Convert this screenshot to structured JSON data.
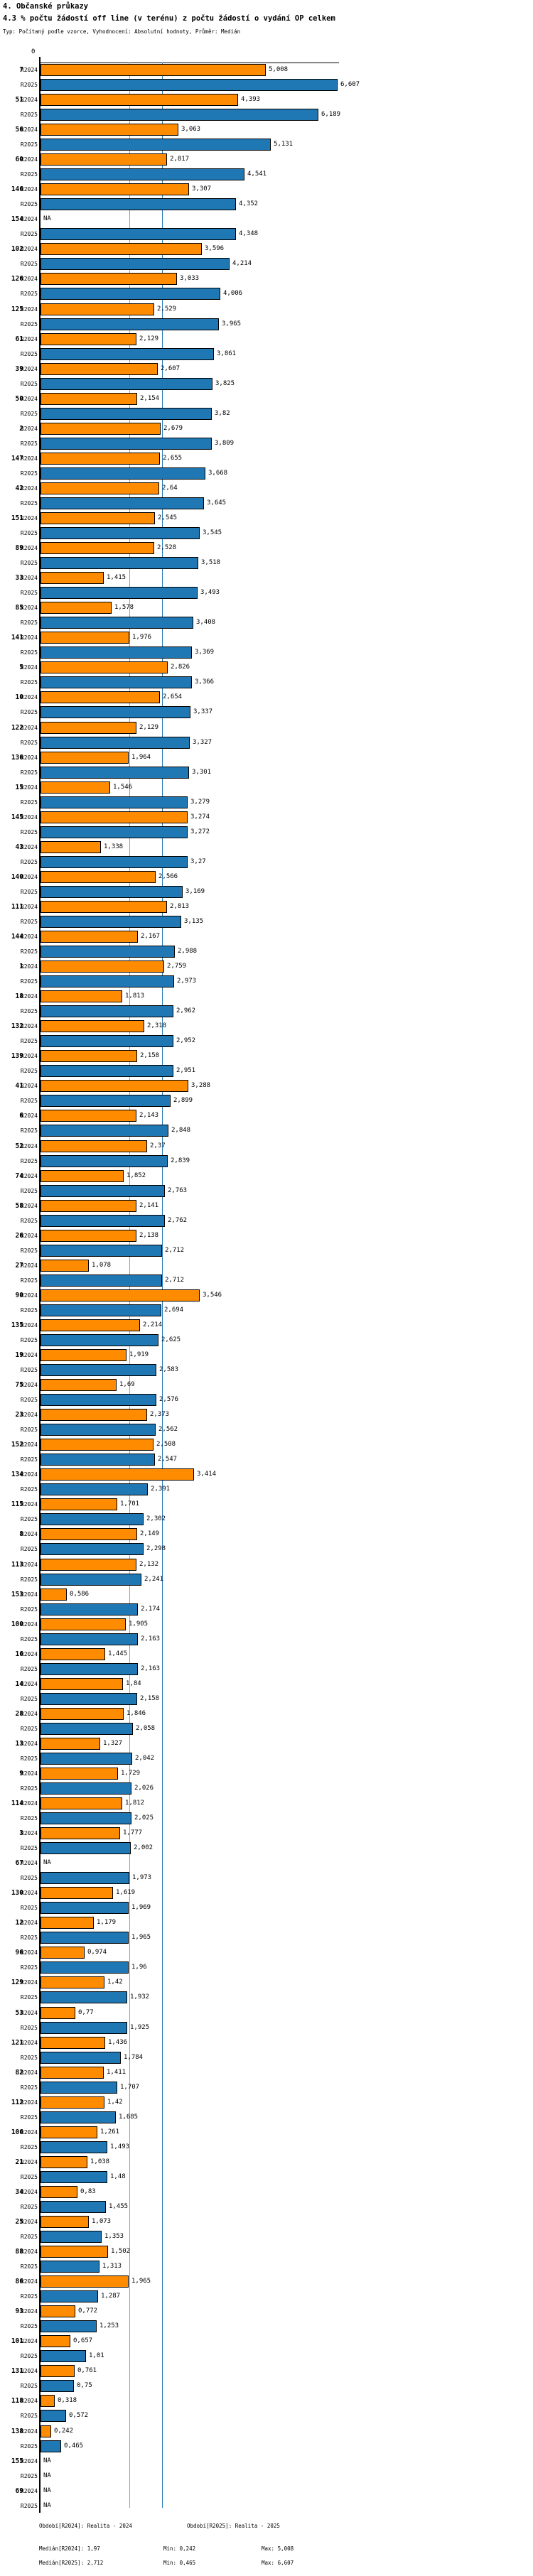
{
  "header": {
    "title": "4. Občanské průkazy",
    "subtitle": "4.3 % počtu žádostí off line (v terénu) z počtu žádostí o vydání OP celkem",
    "meta": "Typ: Počítaný podle vzorce, Vyhodnocení: Absolutní hodnoty, Průměr: Medián"
  },
  "axis": {
    "origin_label": "0"
  },
  "series_labels": {
    "r2024": "R2024",
    "r2025": "R2025"
  },
  "na_label": "NA",
  "colors": {
    "bar_r2024": "#FF8C00",
    "bar_r2025": "#1F77B4",
    "median_line_r2024": "#FF8C00",
    "median_line_r2025": "#1F77B4",
    "bar_border": "#000000"
  },
  "legend": {
    "period_r2024": "Období[R2024]: Realita - 2024",
    "period_r2025": "Období[R2025]: Realita - 2025",
    "median_r2024": "Medián[R2024]: 1,97",
    "min_r2024": "Min: 0,242",
    "max_r2024": "Max: 5,008",
    "median_r2025": "Medián[R2025]: 2,712",
    "min_r2025": "Min: 0,465",
    "max_r2025": "Max: 6,607"
  },
  "chart_data": {
    "type": "bar",
    "orientation": "horizontal",
    "title": "4.3 % počtu žádostí off line (v terénu) z počtu žádostí o vydání OP celkem",
    "xlabel": "",
    "ylabel": "",
    "xlim": [
      0,
      6.67
    ],
    "grid": false,
    "legend_position": "bottom",
    "categories": [
      "7",
      "51",
      "56",
      "60",
      "146",
      "154",
      "102",
      "126",
      "125",
      "61",
      "39",
      "50",
      "2",
      "147",
      "42",
      "151",
      "89",
      "33",
      "85",
      "141",
      "5",
      "10",
      "122",
      "136",
      "15",
      "145",
      "43",
      "140",
      "111",
      "144",
      "1",
      "18",
      "132",
      "139",
      "41",
      "6",
      "52",
      "74",
      "58",
      "26",
      "27",
      "90",
      "135",
      "19",
      "75",
      "23",
      "152",
      "134",
      "115",
      "8",
      "113",
      "153",
      "100",
      "16",
      "14",
      "28",
      "13",
      "9",
      "114",
      "3",
      "67",
      "130",
      "12",
      "96",
      "129",
      "53",
      "121",
      "82",
      "112",
      "106",
      "21",
      "34",
      "25",
      "88",
      "86",
      "93",
      "101",
      "131",
      "118",
      "138",
      "155",
      "69"
    ],
    "series": [
      {
        "name": "R2024",
        "values": [
          5.008,
          4.393,
          3.063,
          2.817,
          3.307,
          null,
          3.596,
          3.033,
          2.529,
          2.129,
          2.607,
          2.154,
          2.679,
          2.655,
          2.64,
          2.545,
          2.528,
          1.415,
          1.578,
          1.976,
          2.826,
          2.654,
          2.129,
          1.964,
          1.546,
          3.274,
          1.338,
          2.566,
          2.813,
          2.167,
          2.759,
          1.813,
          2.318,
          2.158,
          3.288,
          2.143,
          2.37,
          1.852,
          2.141,
          2.138,
          1.078,
          3.546,
          2.214,
          1.919,
          1.69,
          2.373,
          2.508,
          3.414,
          1.701,
          2.149,
          2.132,
          0.586,
          1.905,
          1.445,
          1.84,
          1.846,
          1.327,
          1.729,
          1.812,
          1.777,
          null,
          1.619,
          1.179,
          0.974,
          1.42,
          0.77,
          1.436,
          1.411,
          1.42,
          1.261,
          1.038,
          0.83,
          1.073,
          1.502,
          1.965,
          0.772,
          0.657,
          0.761,
          0.318,
          0.242,
          null,
          null
        ],
        "labels": [
          "5,008",
          "4,393",
          "3,063",
          "2,817",
          "3,307",
          "NA",
          "3,596",
          "3,033",
          "2,529",
          "2,129",
          "2,607",
          "2,154",
          "2,679",
          "2,655",
          "2,64",
          "2,545",
          "2,528",
          "1,415",
          "1,578",
          "1,976",
          "2,826",
          "2,654",
          "2,129",
          "1,964",
          "1,546",
          "3,274",
          "1,338",
          "2,566",
          "2,813",
          "2,167",
          "2,759",
          "1,813",
          "2,318",
          "2,158",
          "3,288",
          "2,143",
          "2,37",
          "1,852",
          "2,141",
          "2,138",
          "1,078",
          "3,546",
          "2,214",
          "1,919",
          "1,69",
          "2,373",
          "2,508",
          "3,414",
          "1,701",
          "2,149",
          "2,132",
          "0,586",
          "1,905",
          "1,445",
          "1,84",
          "1,846",
          "1,327",
          "1,729",
          "1,812",
          "1,777",
          "NA",
          "1,619",
          "1,179",
          "0,974",
          "1,42",
          "0,77",
          "1,436",
          "1,411",
          "1,42",
          "1,261",
          "1,038",
          "0,83",
          "1,073",
          "1,502",
          "1,965",
          "0,772",
          "0,657",
          "0,761",
          "0,318",
          "0,242",
          "NA",
          "NA"
        ]
      },
      {
        "name": "R2025",
        "values": [
          6.607,
          6.189,
          5.131,
          4.541,
          4.352,
          4.348,
          4.214,
          4.006,
          3.965,
          3.861,
          3.825,
          3.82,
          3.809,
          3.668,
          3.645,
          3.545,
          3.518,
          3.493,
          3.408,
          3.369,
          3.366,
          3.337,
          3.327,
          3.301,
          3.279,
          3.272,
          3.27,
          3.169,
          3.135,
          2.988,
          2.973,
          2.962,
          2.952,
          2.951,
          2.899,
          2.848,
          2.839,
          2.763,
          2.762,
          2.712,
          2.712,
          2.694,
          2.625,
          2.583,
          2.576,
          2.562,
          2.547,
          2.391,
          2.302,
          2.298,
          2.241,
          2.174,
          2.163,
          2.163,
          2.158,
          2.058,
          2.042,
          2.026,
          2.025,
          2.002,
          1.973,
          1.969,
          1.965,
          1.96,
          1.932,
          1.925,
          1.784,
          1.707,
          1.685,
          1.493,
          1.48,
          1.455,
          1.353,
          1.313,
          1.287,
          1.253,
          1.01,
          0.75,
          0.572,
          0.465,
          null,
          null
        ],
        "labels": [
          "6,607",
          "6,189",
          "5,131",
          "4,541",
          "4,352",
          "4,348",
          "4,214",
          "4,006",
          "3,965",
          "3,861",
          "3,825",
          "3,82",
          "3,809",
          "3,668",
          "3,645",
          "3,545",
          "3,518",
          "3,493",
          "3,408",
          "3,369",
          "3,366",
          "3,337",
          "3,327",
          "3,301",
          "3,279",
          "3,272",
          "3,27",
          "3,169",
          "3,135",
          "2,988",
          "2,973",
          "2,962",
          "2,952",
          "2,951",
          "2,899",
          "2,848",
          "2,839",
          "2,763",
          "2,762",
          "2,712",
          "2,712",
          "2,694",
          "2,625",
          "2,583",
          "2,576",
          "2,562",
          "2,547",
          "2,391",
          "2,302",
          "2,298",
          "2,241",
          "2,174",
          "2,163",
          "2,163",
          "2,158",
          "2,058",
          "2,042",
          "2,026",
          "2,025",
          "2,002",
          "1,973",
          "1,969",
          "1,965",
          "1,96",
          "1,932",
          "1,925",
          "1,784",
          "1,707",
          "1,685",
          "1,493",
          "1,48",
          "1,455",
          "1,353",
          "1,313",
          "1,287",
          "1,253",
          "1,01",
          "0,75",
          "0,572",
          "0,465",
          "NA",
          "NA"
        ]
      }
    ],
    "reference_lines": {
      "median_R2024": 1.97,
      "median_R2025": 2.712
    },
    "stats": {
      "R2024": {
        "median": 1.97,
        "min": 0.242,
        "max": 5.008
      },
      "R2025": {
        "median": 2.712,
        "min": 0.465,
        "max": 6.607
      }
    }
  }
}
